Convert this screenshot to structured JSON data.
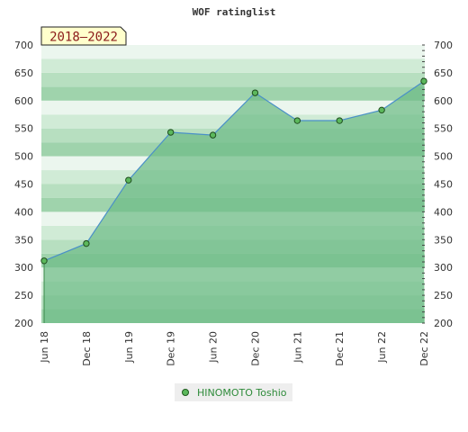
{
  "chart_data": {
    "type": "area",
    "title": "WOF ratinglist",
    "badge": "2018–2022",
    "categories": [
      "Jun 18",
      "Dec 18",
      "Jun 19",
      "Dec 19",
      "Jun 20",
      "Dec 20",
      "Jun 21",
      "Dec 21",
      "Jun 22",
      "Dec 22"
    ],
    "series": [
      {
        "name": "HINOMOTO Toshio",
        "values": [
          312,
          343,
          457,
          543,
          538,
          614,
          564,
          564,
          583,
          635
        ]
      }
    ],
    "ylim": [
      200,
      700
    ],
    "y_ticks": [
      200,
      250,
      300,
      350,
      400,
      450,
      500,
      550,
      600,
      650,
      700
    ],
    "xlabel": "",
    "ylabel": "",
    "grid": true,
    "legend_position": "bottom-center",
    "colors": {
      "line": "#4a90c8",
      "fill": "#6dbb86",
      "marker": "#5cb85c",
      "legend_text": "#2e8b3a",
      "badge_bg": "#ffffcc"
    }
  }
}
